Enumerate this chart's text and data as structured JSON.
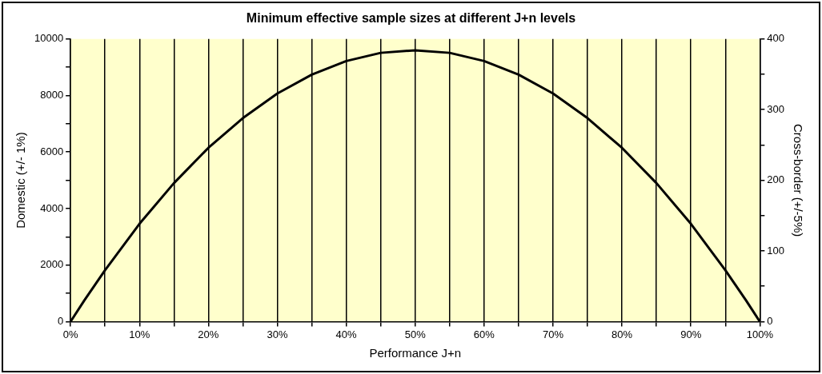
{
  "chart_data": {
    "type": "line",
    "title": "Minimum effective sample sizes at different J+n levels",
    "xlabel": "Performance J+n",
    "ylabel": "Domestic (+/- 1%)",
    "y2label": "Cross-border (+/-5%)",
    "x": [
      0,
      2,
      5,
      10,
      15,
      20,
      25,
      30,
      35,
      40,
      45,
      50,
      55,
      60,
      65,
      70,
      75,
      80,
      85,
      90,
      95,
      98,
      100
    ],
    "series": [
      {
        "color": "#000000",
        "values": [
          0,
          750,
          1820,
          3460,
          4900,
          6150,
          7200,
          8070,
          8740,
          9220,
          9510,
          9600,
          9510,
          9220,
          8740,
          8070,
          7200,
          6150,
          4900,
          3460,
          1820,
          750,
          0
        ]
      }
    ],
    "xlim": [
      0,
      100
    ],
    "xticks": [
      {
        "value": 0,
        "label": "0%"
      },
      {
        "value": 5,
        "label": null
      },
      {
        "value": 10,
        "label": "10%"
      },
      {
        "value": 15,
        "label": null
      },
      {
        "value": 20,
        "label": "20%"
      },
      {
        "value": 25,
        "label": null
      },
      {
        "value": 30,
        "label": "30%"
      },
      {
        "value": 35,
        "label": null
      },
      {
        "value": 40,
        "label": "40%"
      },
      {
        "value": 45,
        "label": null
      },
      {
        "value": 50,
        "label": "50%"
      },
      {
        "value": 55,
        "label": null
      },
      {
        "value": 60,
        "label": "60%"
      },
      {
        "value": 65,
        "label": null
      },
      {
        "value": 70,
        "label": "70%"
      },
      {
        "value": 75,
        "label": null
      },
      {
        "value": 80,
        "label": "80%"
      },
      {
        "value": 85,
        "label": null
      },
      {
        "value": 90,
        "label": "90%"
      },
      {
        "value": 95,
        "label": null
      },
      {
        "value": 100,
        "label": "100%"
      }
    ],
    "ylim": [
      0,
      10000
    ],
    "yticks": [
      0,
      {
        "value": 1000,
        "label": null
      },
      2000,
      {
        "value": 3000,
        "label": null
      },
      4000,
      {
        "value": 5000,
        "label": null
      },
      6000,
      {
        "value": 7000,
        "label": null
      },
      8000,
      {
        "value": 9000,
        "label": null
      },
      10000
    ],
    "y2lim": [
      0,
      400
    ],
    "y2ticks": [
      0,
      {
        "value": 50,
        "label": null
      },
      100,
      {
        "value": 150,
        "label": null
      },
      200,
      {
        "value": 250,
        "label": null
      },
      300,
      {
        "value": 350,
        "label": null
      },
      400
    ],
    "grid": "x",
    "legend": false,
    "marker": "none",
    "line_style": "solid"
  }
}
